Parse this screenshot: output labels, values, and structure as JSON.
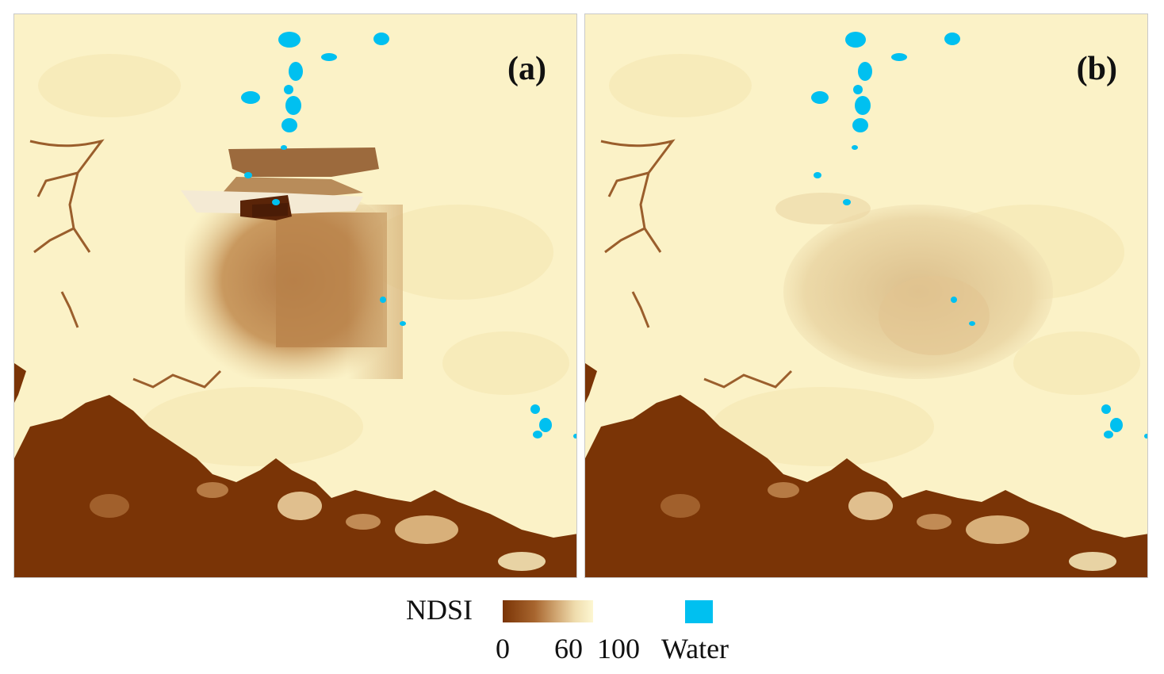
{
  "panels": [
    {
      "label": "(a)"
    },
    {
      "label": "(b)"
    }
  ],
  "legend": {
    "title": "NDSI",
    "ticks": [
      "0",
      "60",
      "100"
    ],
    "water_label": "Water",
    "colors": {
      "ndsi_low": "#7a3406",
      "ndsi_mid": "#d2a874",
      "ndsi_high": "#fdf7d2",
      "water": "#00c0f0"
    }
  }
}
